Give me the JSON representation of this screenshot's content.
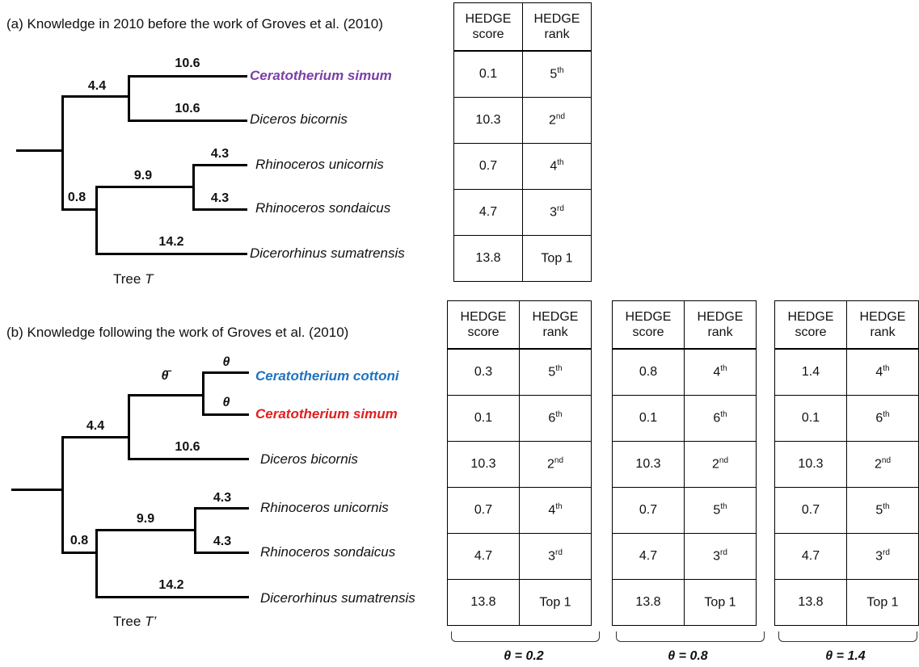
{
  "panel_a": {
    "caption": "(a) Knowledge in 2010 before the work of Groves et al. (2010)",
    "tree_label_prefix": "Tree",
    "tree_label_symbol": "T",
    "branch_lengths": [
      "4.4",
      "10.6",
      "10.6",
      "0.8",
      "9.9",
      "4.3",
      "4.3",
      "14.2"
    ],
    "species": [
      {
        "name": "Ceratotherium simum",
        "color": "#7a3fa7",
        "bold": true
      },
      {
        "name": "Diceros bicornis",
        "color": "#111111",
        "bold": false
      },
      {
        "name": "Rhinoceros unicornis",
        "color": "#111111",
        "bold": false
      },
      {
        "name": "Rhinoceros sondaicus",
        "color": "#111111",
        "bold": false
      },
      {
        "name": "Dicerorhinus sumatrensis",
        "color": "#111111",
        "bold": false
      }
    ],
    "table": {
      "header_score": [
        "HEDGE",
        "score"
      ],
      "header_rank": [
        "HEDGE",
        "rank"
      ],
      "rows": [
        {
          "score": "0.1",
          "rank_num": "5",
          "rank_sup": "th"
        },
        {
          "score": "10.3",
          "rank_num": "2",
          "rank_sup": "nd"
        },
        {
          "score": "0.7",
          "rank_num": "4",
          "rank_sup": "th"
        },
        {
          "score": "4.7",
          "rank_num": "3",
          "rank_sup": "rd"
        },
        {
          "score": "13.8",
          "rank_num": "Top 1",
          "rank_sup": ""
        }
      ]
    }
  },
  "panel_b": {
    "caption": "(b) Knowledge following the work of Groves et al. (2010)",
    "tree_label_prefix": "Tree",
    "tree_label_symbol": "T’",
    "theta_bar": "θ̄",
    "theta": "θ",
    "branch_lengths": [
      "4.4",
      "10.6",
      "0.8",
      "9.9",
      "4.3",
      "4.3",
      "14.2"
    ],
    "species": [
      {
        "name": "Ceratotherium cottoni",
        "color": "#1f73c0",
        "bold": true
      },
      {
        "name": "Ceratotherium simum",
        "color": "#e0201e",
        "bold": true
      },
      {
        "name": "Diceros bicornis",
        "color": "#111111",
        "bold": false
      },
      {
        "name": "Rhinoceros unicornis",
        "color": "#111111",
        "bold": false
      },
      {
        "name": "Rhinoceros sondaicus",
        "color": "#111111",
        "bold": false
      },
      {
        "name": "Dicerorhinus sumatrensis",
        "color": "#111111",
        "bold": false
      }
    ],
    "tables": [
      {
        "theta_label": "θ = 0.2",
        "header_score": [
          "HEDGE",
          "score"
        ],
        "header_rank": [
          "HEDGE",
          "rank"
        ],
        "rows": [
          {
            "score": "0.3",
            "rank_num": "5",
            "rank_sup": "th"
          },
          {
            "score": "0.1",
            "rank_num": "6",
            "rank_sup": "th"
          },
          {
            "score": "10.3",
            "rank_num": "2",
            "rank_sup": "nd"
          },
          {
            "score": "0.7",
            "rank_num": "4",
            "rank_sup": "th"
          },
          {
            "score": "4.7",
            "rank_num": "3",
            "rank_sup": "rd"
          },
          {
            "score": "13.8",
            "rank_num": "Top 1",
            "rank_sup": ""
          }
        ]
      },
      {
        "theta_label": "θ = 0.8",
        "header_score": [
          "HEDGE",
          "score"
        ],
        "header_rank": [
          "HEDGE",
          "rank"
        ],
        "rows": [
          {
            "score": "0.8",
            "rank_num": "4",
            "rank_sup": "th"
          },
          {
            "score": "0.1",
            "rank_num": "6",
            "rank_sup": "th"
          },
          {
            "score": "10.3",
            "rank_num": "2",
            "rank_sup": "nd"
          },
          {
            "score": "0.7",
            "rank_num": "5",
            "rank_sup": "th"
          },
          {
            "score": "4.7",
            "rank_num": "3",
            "rank_sup": "rd"
          },
          {
            "score": "13.8",
            "rank_num": "Top 1",
            "rank_sup": ""
          }
        ]
      },
      {
        "theta_label": "θ = 1.4",
        "header_score": [
          "HEDGE",
          "score"
        ],
        "header_rank": [
          "HEDGE",
          "rank"
        ],
        "rows": [
          {
            "score": "1.4",
            "rank_num": "4",
            "rank_sup": "th"
          },
          {
            "score": "0.1",
            "rank_num": "6",
            "rank_sup": "th"
          },
          {
            "score": "10.3",
            "rank_num": "2",
            "rank_sup": "nd"
          },
          {
            "score": "0.7",
            "rank_num": "5",
            "rank_sup": "th"
          },
          {
            "score": "4.7",
            "rank_num": "3",
            "rank_sup": "rd"
          },
          {
            "score": "13.8",
            "rank_num": "Top 1",
            "rank_sup": ""
          }
        ]
      }
    ]
  }
}
